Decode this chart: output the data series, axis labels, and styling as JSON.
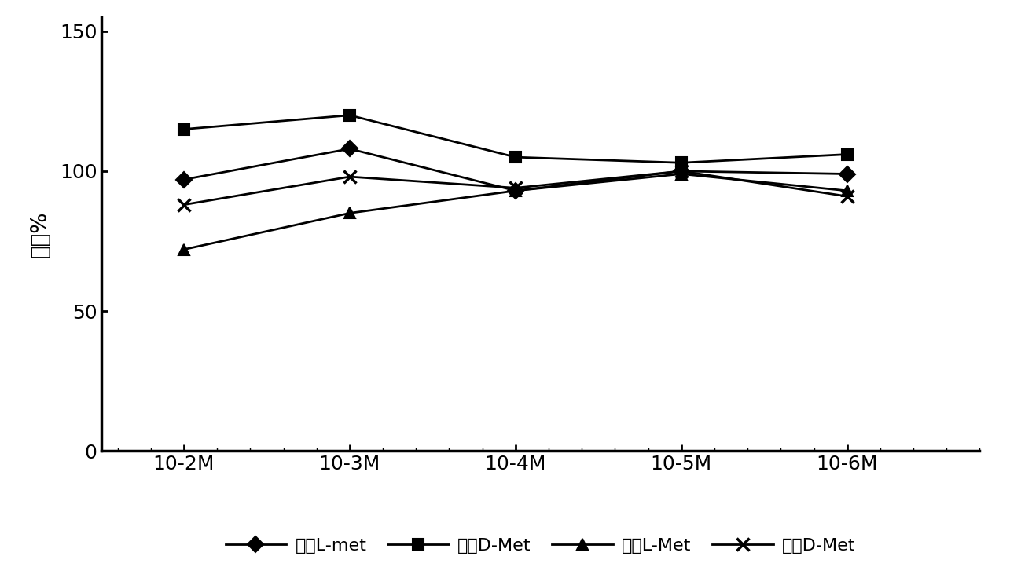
{
  "x_labels": [
    "10-2M",
    "10-3M",
    "10-4M",
    "10-5M",
    "10-6M"
  ],
  "x_positions": [
    0,
    1,
    2,
    3,
    4
  ],
  "series": [
    {
      "name": "改良L-met",
      "values": [
        97,
        108,
        93,
        100,
        99
      ],
      "color": "#000000",
      "marker": "D",
      "marker_size": 10,
      "linewidth": 2.0
    },
    {
      "name": "改良D-Met",
      "values": [
        115,
        120,
        105,
        103,
        106
      ],
      "color": "#000000",
      "marker": "s",
      "marker_size": 10,
      "linewidth": 2.0
    },
    {
      "name": "常规L-Met",
      "values": [
        72,
        85,
        93,
        99,
        93
      ],
      "color": "#000000",
      "marker": "^",
      "marker_size": 10,
      "linewidth": 2.0
    },
    {
      "name": "常规D-Met",
      "values": [
        88,
        98,
        94,
        100,
        91
      ],
      "color": "#000000",
      "marker": "x",
      "marker_size": 12,
      "linewidth": 2.0
    }
  ],
  "ylabel": "对照%",
  "ylim": [
    0,
    155
  ],
  "yticks": [
    0,
    50,
    100,
    150
  ],
  "background_color": "#ffffff",
  "legend_ncol": 4,
  "tick_fontsize": 18,
  "label_fontsize": 20,
  "legend_fontsize": 16
}
